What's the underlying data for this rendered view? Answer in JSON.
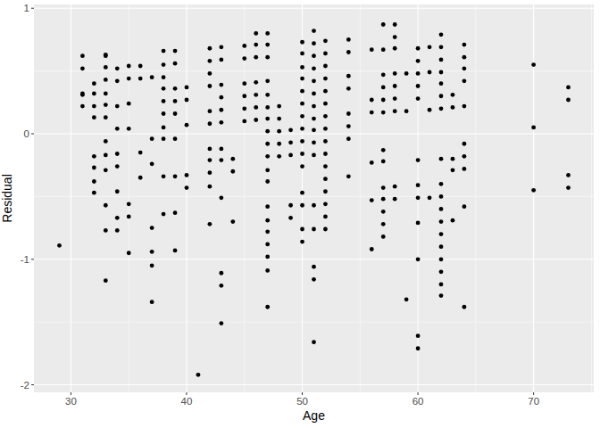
{
  "chart_data": {
    "type": "scatter",
    "x_label": "Age",
    "y_label": "Residual",
    "x": [
      29,
      31,
      31,
      31,
      31,
      31,
      32,
      32,
      32,
      32,
      32,
      32,
      32,
      32,
      33,
      33,
      33,
      33,
      33,
      33,
      33,
      33,
      33,
      33,
      33,
      33,
      33,
      34,
      34,
      34,
      34,
      34,
      34,
      34,
      34,
      34,
      35,
      35,
      35,
      35,
      35,
      35,
      35,
      36,
      36,
      36,
      36,
      37,
      37,
      37,
      37,
      37,
      37,
      37,
      38,
      38,
      38,
      38,
      38,
      38,
      38,
      38,
      38,
      38,
      39,
      39,
      39,
      39,
      39,
      39,
      39,
      39,
      39,
      40,
      40,
      40,
      40,
      40,
      41,
      42,
      42,
      42,
      42,
      42,
      42,
      42,
      42,
      42,
      42,
      42,
      43,
      43,
      43,
      43,
      43,
      43,
      43,
      43,
      43,
      43,
      43,
      43,
      44,
      44,
      44,
      45,
      45,
      45,
      45,
      45,
      45,
      46,
      46,
      46,
      46,
      46,
      46,
      46,
      47,
      47,
      47,
      47,
      47,
      47,
      47,
      47,
      47,
      47,
      47,
      47,
      47,
      47,
      47,
      47,
      47,
      47,
      47,
      48,
      48,
      48,
      48,
      48,
      49,
      49,
      49,
      49,
      49,
      50,
      50,
      50,
      50,
      50,
      50,
      50,
      50,
      50,
      50,
      50,
      50,
      50,
      50,
      50,
      51,
      51,
      51,
      51,
      51,
      51,
      51,
      51,
      51,
      51,
      51,
      51,
      51,
      51,
      51,
      51,
      52,
      52,
      52,
      52,
      52,
      52,
      52,
      52,
      52,
      52,
      52,
      52,
      52,
      52,
      52,
      52,
      54,
      54,
      54,
      54,
      54,
      54,
      54,
      54,
      56,
      56,
      56,
      56,
      56,
      56,
      57,
      57,
      57,
      57,
      57,
      57,
      57,
      57,
      57,
      57,
      57,
      57,
      57,
      58,
      58,
      58,
      58,
      58,
      58,
      58,
      58,
      58,
      59,
      59,
      59,
      60,
      60,
      60,
      60,
      60,
      60,
      60,
      60,
      60,
      60,
      60,
      60,
      61,
      61,
      61,
      61,
      62,
      62,
      62,
      62,
      62,
      62,
      62,
      62,
      62,
      62,
      62,
      62,
      62,
      62,
      62,
      62,
      62,
      62,
      63,
      63,
      63,
      63,
      63,
      64,
      64,
      64,
      64,
      64,
      64,
      64,
      64,
      64,
      64,
      70,
      70,
      70,
      73,
      73,
      73,
      73
    ],
    "values": [
      -0.89,
      0.62,
      0.52,
      0.32,
      0.31,
      0.22,
      0.4,
      0.32,
      0.22,
      0.13,
      -0.18,
      -0.27,
      -0.38,
      -0.47,
      0.63,
      0.62,
      0.53,
      0.43,
      0.32,
      0.23,
      0.13,
      -0.06,
      -0.17,
      -0.29,
      -0.57,
      -0.77,
      -1.17,
      0.52,
      0.42,
      0.22,
      0.04,
      -0.16,
      -0.26,
      -0.46,
      -0.67,
      -0.77,
      0.54,
      0.44,
      0.24,
      0.04,
      -0.56,
      -0.66,
      -0.95,
      0.54,
      0.44,
      -0.15,
      -0.35,
      0.45,
      -0.04,
      -0.24,
      -0.75,
      -0.94,
      -1.05,
      -1.34,
      0.66,
      0.55,
      0.45,
      0.36,
      0.26,
      0.16,
      0.05,
      -0.04,
      -0.34,
      -0.64,
      0.66,
      0.56,
      0.36,
      0.26,
      0.16,
      -0.04,
      -0.34,
      -0.63,
      -0.93,
      0.37,
      0.27,
      0.07,
      -0.33,
      -0.43,
      -1.92,
      0.68,
      0.58,
      0.48,
      0.38,
      0.18,
      0.08,
      -0.12,
      -0.21,
      -0.31,
      -0.42,
      -0.72,
      0.69,
      0.59,
      0.39,
      0.29,
      0.19,
      0.09,
      -0.12,
      -0.21,
      -0.51,
      -1.11,
      -1.21,
      -1.51,
      -0.2,
      -0.3,
      -0.7,
      0.7,
      0.6,
      0.4,
      0.3,
      0.2,
      0.1,
      0.8,
      0.71,
      0.61,
      0.41,
      0.31,
      0.21,
      0.11,
      0.8,
      0.71,
      0.61,
      0.42,
      0.31,
      0.21,
      0.12,
      0.02,
      -0.08,
      -0.18,
      -0.29,
      -0.38,
      -0.58,
      -0.69,
      -0.78,
      -0.88,
      -0.98,
      -1.09,
      -1.38,
      0.22,
      0.12,
      0.02,
      -0.08,
      -0.18,
      0.03,
      -0.07,
      -0.17,
      -0.57,
      -0.67,
      0.73,
      0.64,
      0.53,
      0.44,
      0.34,
      0.24,
      0.14,
      0.04,
      -0.06,
      -0.16,
      -0.26,
      -0.47,
      -0.57,
      -0.76,
      -0.86,
      0.82,
      0.72,
      0.62,
      0.52,
      0.42,
      0.32,
      0.22,
      0.12,
      0.03,
      -0.07,
      -0.17,
      -0.57,
      -0.76,
      -1.06,
      -1.16,
      -1.66,
      0.74,
      0.64,
      0.54,
      0.44,
      0.34,
      0.24,
      0.14,
      0.04,
      -0.06,
      -0.16,
      -0.26,
      -0.36,
      -0.46,
      -0.56,
      -0.66,
      -0.76,
      0.75,
      0.65,
      0.46,
      0.36,
      0.16,
      0.06,
      -0.04,
      -0.34,
      0.67,
      0.27,
      0.17,
      -0.23,
      -0.53,
      -0.92,
      0.87,
      0.67,
      0.47,
      0.37,
      0.27,
      0.17,
      -0.13,
      -0.22,
      -0.43,
      -0.52,
      -0.62,
      -0.72,
      -0.82,
      0.87,
      0.77,
      0.68,
      0.48,
      0.38,
      0.28,
      0.18,
      -0.42,
      -0.52,
      0.48,
      0.18,
      -1.32,
      0.68,
      0.58,
      0.48,
      0.38,
      0.28,
      -0.21,
      -0.41,
      -0.51,
      -0.71,
      -1.0,
      -1.61,
      -1.71,
      0.69,
      0.49,
      0.19,
      -0.51,
      0.79,
      0.69,
      0.59,
      0.49,
      0.4,
      0.3,
      0.2,
      -0.2,
      -0.4,
      -0.5,
      -0.6,
      -0.7,
      -0.8,
      -0.9,
      -1.0,
      -1.1,
      -1.2,
      -1.29,
      0.31,
      0.21,
      -0.2,
      -0.29,
      -0.69,
      0.71,
      0.61,
      0.52,
      0.42,
      0.22,
      -0.08,
      -0.18,
      -0.28,
      -0.58,
      -1.38,
      0.55,
      0.05,
      -0.45,
      0.37,
      0.27,
      -0.33,
      -0.43
    ],
    "color": "#000000",
    "marker": "circle",
    "xlim": [
      26.8,
      75.2
    ],
    "xticks": [
      30,
      40,
      50,
      60,
      70
    ],
    "ylim": [
      -2.06,
      1.03
    ],
    "yticks": [
      -2,
      -1,
      0,
      1
    ],
    "grid": true
  }
}
